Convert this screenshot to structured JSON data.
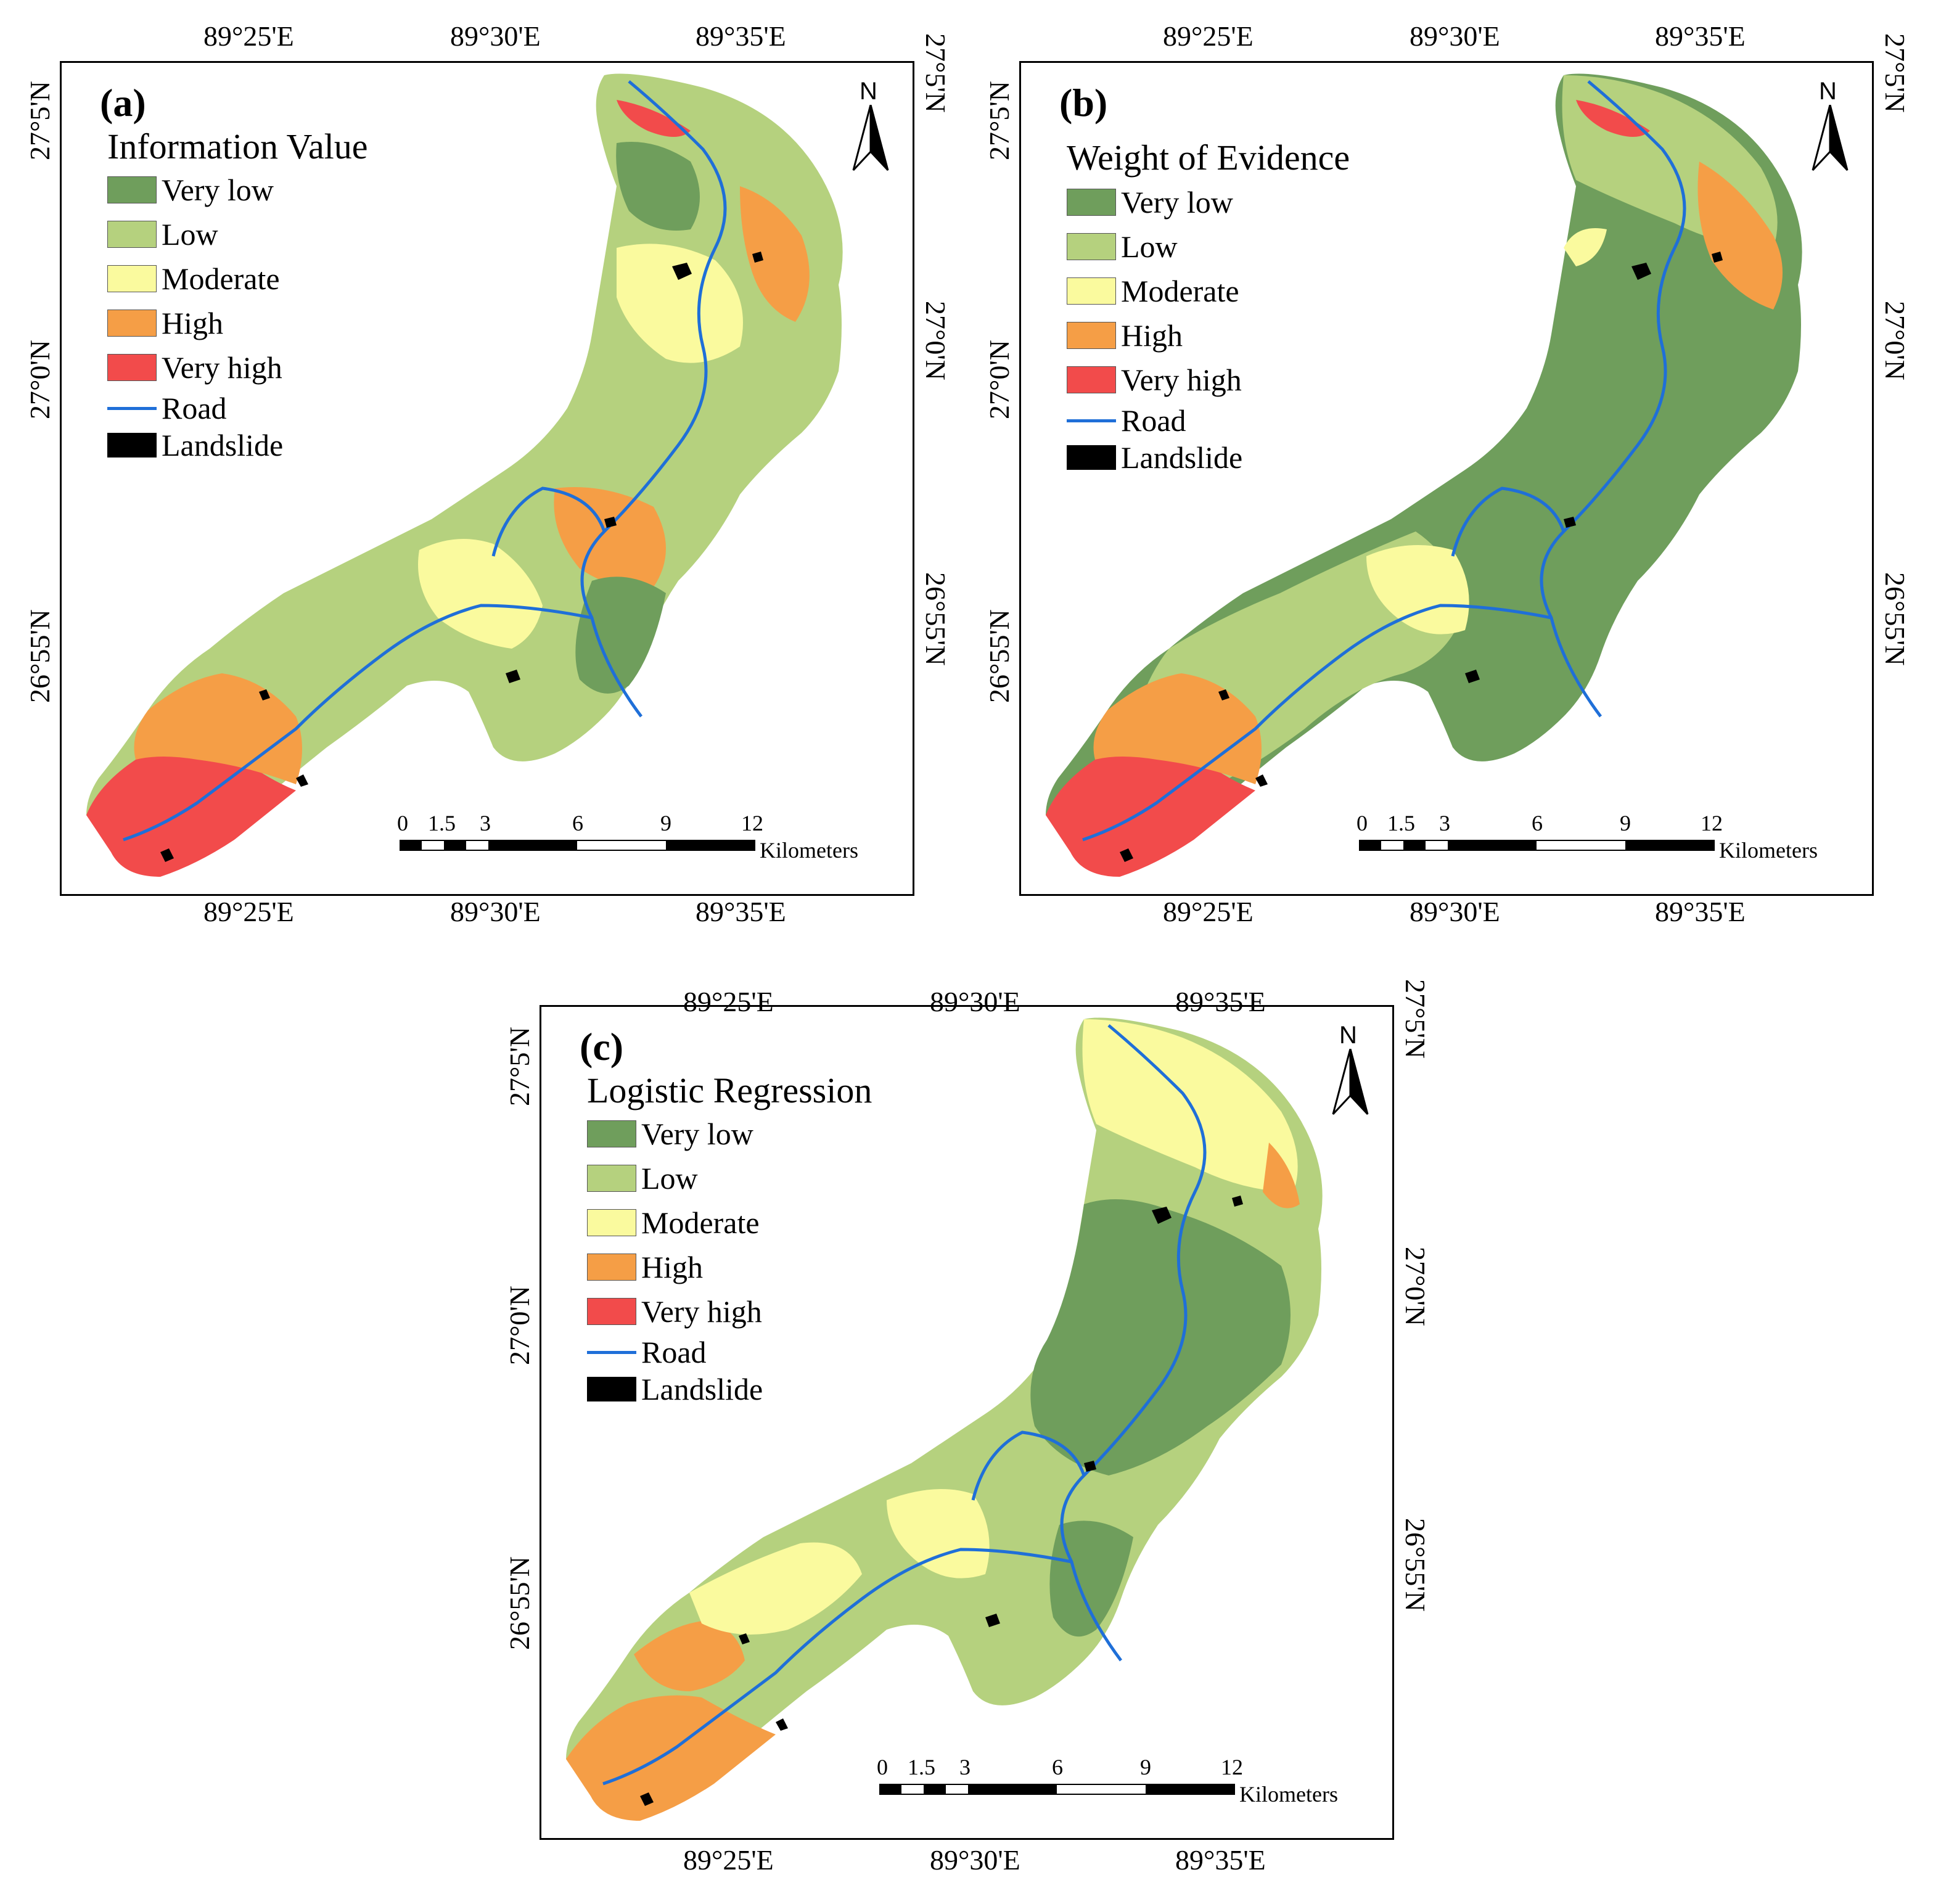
{
  "panels": [
    {
      "id": "a",
      "label": "(a)",
      "title": "Information Value"
    },
    {
      "id": "b",
      "label": "(b)",
      "title": "Weight of Evidence"
    },
    {
      "id": "c",
      "label": "(c)",
      "title": "Logistic Regression"
    }
  ],
  "legend": {
    "classes": [
      {
        "label": "Very low",
        "color": "#6f9e5c"
      },
      {
        "label": "Low",
        "color": "#b5d17e"
      },
      {
        "label": "Moderate",
        "color": "#fafa9e"
      },
      {
        "label": "High",
        "color": "#f59e46"
      },
      {
        "label": "Very high",
        "color": "#f24b4b"
      }
    ],
    "road": {
      "label": "Road",
      "color": "#1f6fd8"
    },
    "landslide": {
      "label": "Landslide",
      "color": "#000000"
    }
  },
  "axes": {
    "lon_ticks": [
      "89°25'E",
      "89°30'E",
      "89°35'E"
    ],
    "lat_ticks": [
      "27°5'N",
      "27°0'N",
      "26°55'N"
    ]
  },
  "north_arrow": {
    "label": "N"
  },
  "scale_bar": {
    "ticks": [
      "0",
      "1.5",
      "3",
      "6",
      "9",
      "12"
    ],
    "unit": "Kilometers"
  }
}
